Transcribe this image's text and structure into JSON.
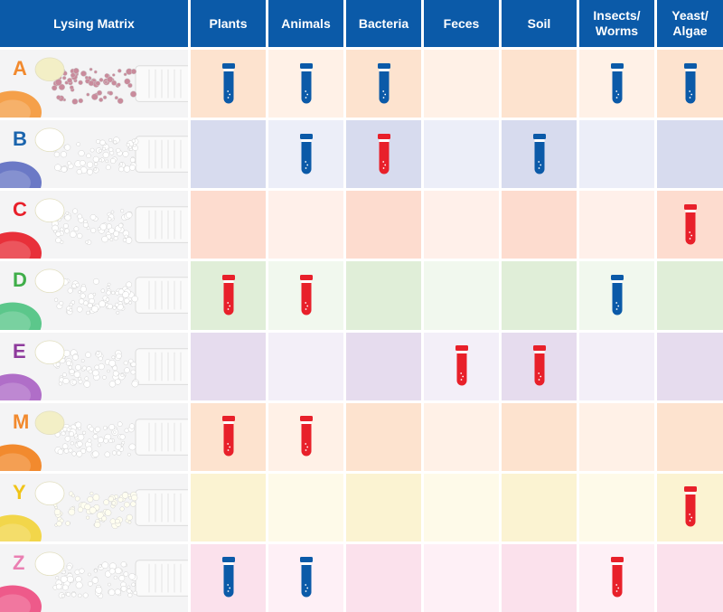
{
  "chart_data": {
    "type": "table",
    "columns": [
      "Lysing Matrix",
      "Plants",
      "Animals",
      "Bacteria",
      "Feces",
      "Soil",
      "Insects/\nWorms",
      "Yeast/\nAlgae"
    ],
    "legend": {
      "blue": "#0b5aa8",
      "red": "#e8202a"
    },
    "rows": [
      {
        "label": "A",
        "letter_color": "#f28a2e",
        "tint_dark": "#fde3cf",
        "tint_light": "#fff1e7",
        "cells": [
          "blue",
          "blue",
          "blue",
          "",
          "",
          "blue",
          "blue"
        ]
      },
      {
        "label": "B",
        "letter_color": "#1a64ad",
        "tint_dark": "#d7dbee",
        "tint_light": "#eceef8",
        "cells": [
          "",
          "blue",
          "red",
          "",
          "blue",
          "",
          ""
        ]
      },
      {
        "label": "C",
        "letter_color": "#e8202a",
        "tint_dark": "#fddccf",
        "tint_light": "#fff0ea",
        "cells": [
          "",
          "",
          "",
          "",
          "",
          "",
          "red"
        ]
      },
      {
        "label": "D",
        "letter_color": "#3fae49",
        "tint_dark": "#e0eed8",
        "tint_light": "#f1f8ee",
        "cells": [
          "red",
          "red",
          "",
          "",
          "",
          "blue",
          ""
        ]
      },
      {
        "label": "E",
        "letter_color": "#8e3a9c",
        "tint_dark": "#e6dcee",
        "tint_light": "#f3eff8",
        "cells": [
          "",
          "",
          "",
          "red",
          "red",
          "",
          ""
        ]
      },
      {
        "label": "M",
        "letter_color": "#f28a2e",
        "tint_dark": "#fde3cf",
        "tint_light": "#fff1e7",
        "cells": [
          "red",
          "red",
          "",
          "",
          "",
          "",
          ""
        ]
      },
      {
        "label": "Y",
        "letter_color": "#f0c419",
        "tint_dark": "#fbf3d2",
        "tint_light": "#fefae9",
        "cells": [
          "",
          "",
          "",
          "",
          "",
          "",
          "red"
        ]
      },
      {
        "label": "Z",
        "letter_color": "#ea7fb2",
        "tint_dark": "#fbe1ec",
        "tint_light": "#fef0f6",
        "cells": [
          "blue",
          "blue",
          "",
          "",
          "",
          "red",
          ""
        ]
      }
    ],
    "photos": {
      "A": {
        "cap": "#f5a04a",
        "cap2": "#f3efc6",
        "beads": "#c98b9c"
      },
      "B": {
        "cap": "#6b79c6",
        "cap2": "#ffffff",
        "beads": "#ffffff"
      },
      "C": {
        "cap": "#e8303a",
        "cap2": "#ffffff",
        "beads": "#ffffff"
      },
      "D": {
        "cap": "#5cc78b",
        "cap2": "#ffffff",
        "beads": "#ffffff"
      },
      "E": {
        "cap": "#b06ec8",
        "cap2": "#ffffff",
        "beads": "#ffffff"
      },
      "M": {
        "cap": "#f28a2e",
        "cap2": "#f3efc6",
        "beads": "#ffffff"
      },
      "Y": {
        "cap": "#f2d64a",
        "cap2": "#ffffff",
        "beads": "#fffef0"
      },
      "Z": {
        "cap": "#ee5a8a",
        "cap2": "#ffffff",
        "beads": "#ffffff"
      }
    }
  }
}
